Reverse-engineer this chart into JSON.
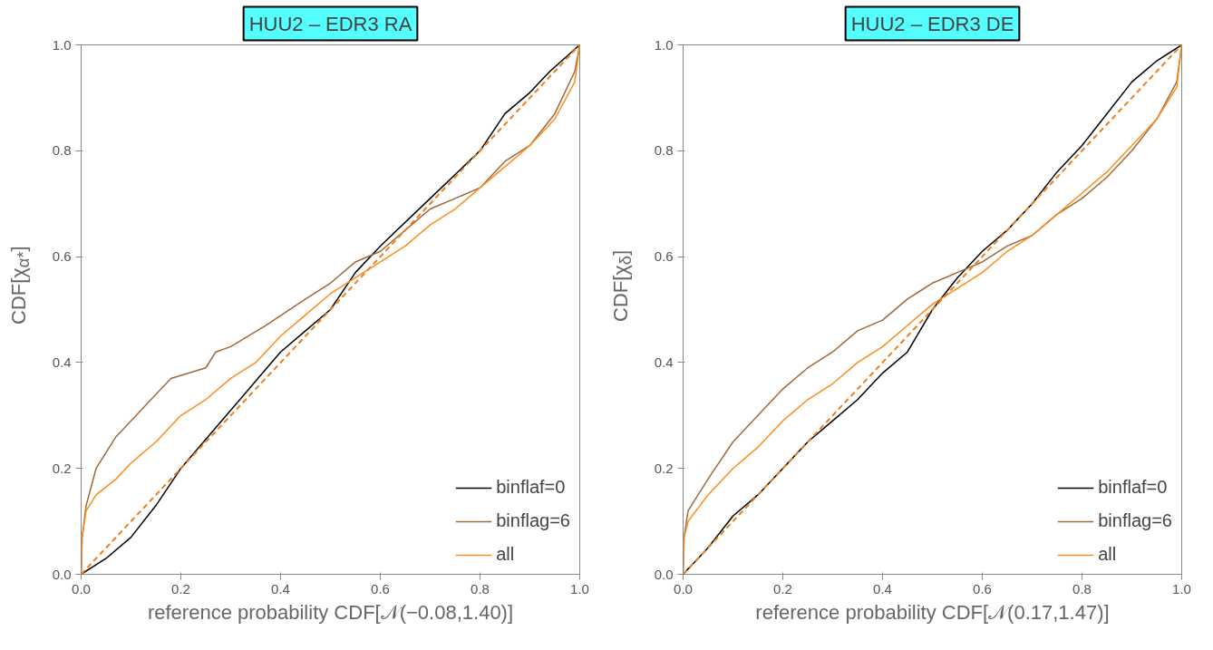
{
  "chart_data": [
    {
      "type": "line",
      "title": "HUU2 – EDR3 RA",
      "xlabel": "reference probability CDF[𝒩(−0.08,1.40)]",
      "ylabel": "CDF[χ$_{α*}$]",
      "xlim": [
        0,
        1
      ],
      "ylim": [
        0,
        1
      ],
      "xticks": [
        {
          "value": 0,
          "label": "0.0"
        },
        {
          "value": 0.2,
          "label": "0.2"
        },
        {
          "value": 0.4,
          "label": "0.4"
        },
        {
          "value": 0.6,
          "label": "0.6"
        },
        {
          "value": 0.8,
          "label": "0.8"
        },
        {
          "value": 1,
          "label": "1.0"
        }
      ],
      "yticks": [
        {
          "value": 0,
          "label": "0.0"
        },
        {
          "value": 0.2,
          "label": "0.2"
        },
        {
          "value": 0.4,
          "label": "0.4"
        },
        {
          "value": 0.6,
          "label": "0.6"
        },
        {
          "value": 0.8,
          "label": "0.8"
        },
        {
          "value": 1,
          "label": "1.0"
        }
      ],
      "grid": false,
      "legend": "bottom right",
      "marker": "none",
      "series": [
        {
          "name": "binflaf=0",
          "color": "#000000",
          "x": [
            0,
            0.05,
            0.1,
            0.15,
            0.2,
            0.3,
            0.4,
            0.45,
            0.5,
            0.55,
            0.6,
            0.7,
            0.8,
            0.85,
            0.9,
            0.94,
            1
          ],
          "values": [
            0,
            0.03,
            0.07,
            0.13,
            0.2,
            0.31,
            0.42,
            0.46,
            0.5,
            0.57,
            0.62,
            0.71,
            0.8,
            0.87,
            0.91,
            0.95,
            1
          ]
        },
        {
          "name": "binflag=6",
          "color": "#a0693a",
          "x": [
            0,
            0.002,
            0.01,
            0.03,
            0.07,
            0.1,
            0.15,
            0.18,
            0.25,
            0.27,
            0.3,
            0.37,
            0.45,
            0.5,
            0.55,
            0.6,
            0.65,
            0.7,
            0.8,
            0.85,
            0.9,
            0.95,
            0.99,
            1
          ],
          "values": [
            0,
            0.07,
            0.13,
            0.2,
            0.26,
            0.29,
            0.34,
            0.37,
            0.39,
            0.42,
            0.43,
            0.47,
            0.52,
            0.55,
            0.59,
            0.61,
            0.65,
            0.69,
            0.73,
            0.78,
            0.81,
            0.87,
            0.95,
            1
          ]
        },
        {
          "name": "all",
          "color": "#ff8c1a",
          "x": [
            0,
            0.002,
            0.01,
            0.03,
            0.07,
            0.1,
            0.15,
            0.2,
            0.25,
            0.3,
            0.35,
            0.4,
            0.45,
            0.5,
            0.55,
            0.6,
            0.65,
            0.7,
            0.75,
            0.8,
            0.85,
            0.9,
            0.95,
            0.99,
            1
          ],
          "values": [
            0,
            0.07,
            0.12,
            0.15,
            0.18,
            0.21,
            0.25,
            0.3,
            0.33,
            0.37,
            0.4,
            0.45,
            0.49,
            0.53,
            0.56,
            0.59,
            0.62,
            0.66,
            0.69,
            0.73,
            0.77,
            0.81,
            0.86,
            0.93,
            1
          ]
        },
        {
          "color": "#f07f1a",
          "line_style": "dashed",
          "x": [
            0,
            1
          ],
          "values": [
            0,
            1
          ]
        }
      ]
    },
    {
      "type": "line",
      "title": "HUU2 – EDR3 DE",
      "xlabel": "reference probability CDF[𝒩(0.17,1.47)]",
      "ylabel": "CDF[χ$_{δ}$]",
      "xlim": [
        0,
        1
      ],
      "ylim": [
        0,
        1
      ],
      "xticks": [
        {
          "value": 0,
          "label": "0.0"
        },
        {
          "value": 0.2,
          "label": "0.2"
        },
        {
          "value": 0.4,
          "label": "0.4"
        },
        {
          "value": 0.6,
          "label": "0.6"
        },
        {
          "value": 0.8,
          "label": "0.8"
        },
        {
          "value": 1,
          "label": "1.0"
        }
      ],
      "yticks": [
        {
          "value": 0,
          "label": "0.0"
        },
        {
          "value": 0.2,
          "label": "0.2"
        },
        {
          "value": 0.4,
          "label": "0.4"
        },
        {
          "value": 0.6,
          "label": "0.6"
        },
        {
          "value": 0.8,
          "label": "0.8"
        },
        {
          "value": 1,
          "label": "1.0"
        }
      ],
      "grid": false,
      "legend": "bottom right",
      "marker": "none",
      "series": [
        {
          "name": "binflaf=0",
          "color": "#000000",
          "x": [
            0,
            0.05,
            0.1,
            0.15,
            0.2,
            0.25,
            0.3,
            0.35,
            0.4,
            0.45,
            0.5,
            0.55,
            0.6,
            0.65,
            0.7,
            0.75,
            0.8,
            0.85,
            0.9,
            0.95,
            1
          ],
          "values": [
            0,
            0.05,
            0.11,
            0.15,
            0.2,
            0.25,
            0.29,
            0.33,
            0.38,
            0.42,
            0.5,
            0.56,
            0.61,
            0.65,
            0.7,
            0.76,
            0.81,
            0.87,
            0.93,
            0.97,
            1
          ]
        },
        {
          "name": "binflag=6",
          "color": "#a0693a",
          "x": [
            0,
            0.002,
            0.01,
            0.05,
            0.1,
            0.15,
            0.2,
            0.25,
            0.3,
            0.35,
            0.4,
            0.45,
            0.5,
            0.55,
            0.6,
            0.65,
            0.7,
            0.75,
            0.8,
            0.85,
            0.9,
            0.95,
            0.99,
            1
          ],
          "values": [
            0,
            0.07,
            0.12,
            0.18,
            0.25,
            0.3,
            0.35,
            0.39,
            0.42,
            0.46,
            0.48,
            0.52,
            0.55,
            0.57,
            0.59,
            0.62,
            0.64,
            0.68,
            0.71,
            0.75,
            0.8,
            0.86,
            0.93,
            1
          ]
        },
        {
          "name": "all",
          "color": "#ff8c1a",
          "x": [
            0,
            0.002,
            0.01,
            0.05,
            0.1,
            0.15,
            0.2,
            0.25,
            0.3,
            0.35,
            0.4,
            0.45,
            0.5,
            0.55,
            0.6,
            0.65,
            0.7,
            0.75,
            0.8,
            0.85,
            0.9,
            0.95,
            0.99,
            1
          ],
          "values": [
            0,
            0.07,
            0.1,
            0.15,
            0.2,
            0.24,
            0.29,
            0.33,
            0.36,
            0.4,
            0.43,
            0.47,
            0.51,
            0.54,
            0.57,
            0.61,
            0.64,
            0.68,
            0.72,
            0.76,
            0.81,
            0.86,
            0.92,
            1
          ]
        },
        {
          "color": "#f07f1a",
          "line_style": "dashed",
          "x": [
            0,
            1
          ],
          "values": [
            0,
            1
          ]
        }
      ]
    }
  ]
}
